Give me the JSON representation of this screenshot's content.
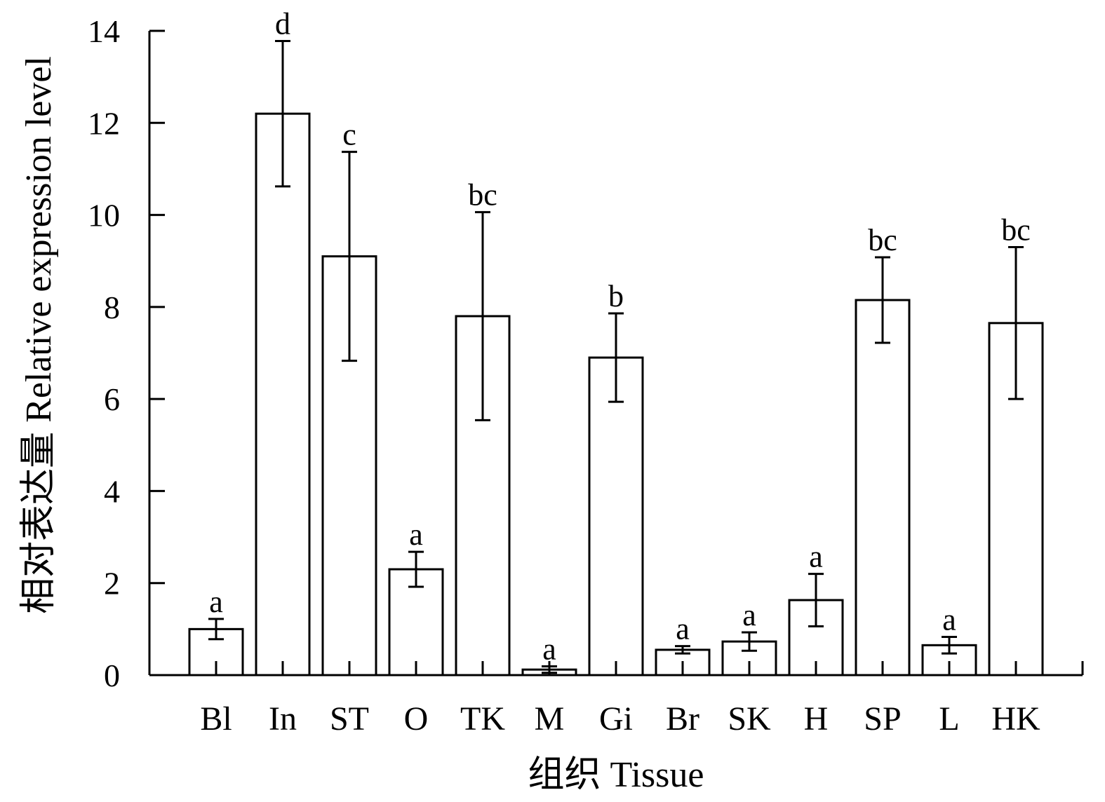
{
  "chart_data": {
    "type": "bar",
    "xlabel": "组织 Tissue",
    "ylabel": "相对表达量 Relative expression level",
    "ylim": [
      0,
      14
    ],
    "yticks": [
      0,
      2,
      4,
      6,
      8,
      10,
      12,
      14
    ],
    "grid": false,
    "categories": [
      "Bl",
      "In",
      "ST",
      "O",
      "TK",
      "M",
      "Gi",
      "Br",
      "SK",
      "H",
      "SP",
      "L",
      "HK"
    ],
    "values": [
      1.0,
      12.2,
      9.1,
      2.3,
      7.8,
      0.12,
      6.9,
      0.55,
      0.73,
      1.63,
      8.15,
      0.65,
      7.65
    ],
    "errors": [
      0.22,
      1.58,
      2.27,
      0.38,
      2.26,
      0.07,
      0.96,
      0.08,
      0.2,
      0.57,
      0.93,
      0.18,
      1.65
    ],
    "significance": [
      "a",
      "d",
      "c",
      "a",
      "bc",
      "a",
      "b",
      "a",
      "a",
      "a",
      "bc",
      "a",
      "bc"
    ]
  }
}
